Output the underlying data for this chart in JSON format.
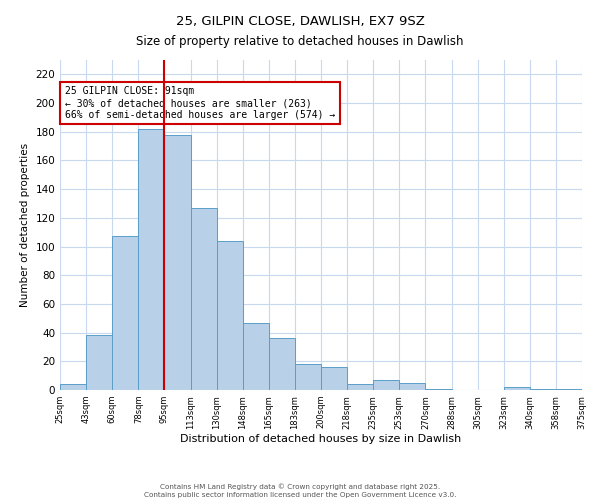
{
  "title": "25, GILPIN CLOSE, DAWLISH, EX7 9SZ",
  "subtitle": "Size of property relative to detached houses in Dawlish",
  "xlabel": "Distribution of detached houses by size in Dawlish",
  "ylabel": "Number of detached properties",
  "bar_values": [
    4,
    38,
    107,
    182,
    178,
    127,
    104,
    47,
    36,
    18,
    16,
    4,
    7,
    5,
    1,
    0,
    0,
    2,
    1,
    1
  ],
  "bar_labels": [
    "25sqm",
    "43sqm",
    "60sqm",
    "78sqm",
    "95sqm",
    "113sqm",
    "130sqm",
    "148sqm",
    "165sqm",
    "183sqm",
    "200sqm",
    "218sqm",
    "235sqm",
    "253sqm",
    "270sqm",
    "288sqm",
    "305sqm",
    "323sqm",
    "340sqm",
    "358sqm",
    "375sqm"
  ],
  "bar_color": "#b8d0e8",
  "bar_edge_color": "#5a9ec8",
  "vline_color": "#cc0000",
  "vline_position": 3.5,
  "annotation_text": "25 GILPIN CLOSE: 91sqm\n← 30% of detached houses are smaller (263)\n66% of semi-detached houses are larger (574) →",
  "annotation_box_color": "#ffffff",
  "annotation_border_color": "#cc0000",
  "ylim": [
    0,
    230
  ],
  "yticks": [
    0,
    20,
    40,
    60,
    80,
    100,
    120,
    140,
    160,
    180,
    200,
    220
  ],
  "footer_line1": "Contains HM Land Registry data © Crown copyright and database right 2025.",
  "footer_line2": "Contains public sector information licensed under the Open Government Licence v3.0.",
  "bg_color": "#ffffff",
  "grid_color": "#c8d8ee",
  "title_fontsize": 9.5,
  "subtitle_fontsize": 8.5
}
